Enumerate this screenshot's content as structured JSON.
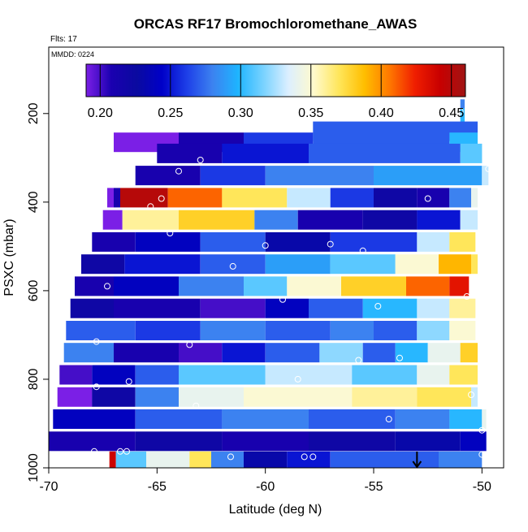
{
  "chart_data": {
    "type": "heatmap",
    "title": "ORCAS RF17 Bromochloromethane_AWAS",
    "flights_label": "Flts: 17",
    "date_label": "MMDD: 0224",
    "xlabel": "Latitude (deg N)",
    "ylabel": "PSXC (mbar)",
    "xlim": [
      -70,
      -49
    ],
    "ylim": [
      1000,
      50
    ],
    "x_ticks": [
      -70,
      -65,
      -60,
      -55,
      -50
    ],
    "x_tick_labels": [
      "-70",
      "-65",
      "-60",
      "-55",
      "-50"
    ],
    "y_ticks": [
      200,
      400,
      600,
      800,
      1000
    ],
    "y_tick_labels": [
      "200",
      "400",
      "600",
      "800",
      "1000"
    ],
    "colorbar": {
      "range": [
        0.19,
        0.46
      ],
      "ticks": [
        0.2,
        0.25,
        0.3,
        0.35,
        0.4,
        0.45
      ],
      "tick_labels": [
        "0.20",
        "0.25",
        "0.30",
        "0.35",
        "0.40",
        "0.45"
      ],
      "stops": [
        "#7b1fe6",
        "#1a00b0",
        "#0a0aa0",
        "#0000c8",
        "#1e40e8",
        "#3c82f0",
        "#1eb4ff",
        "#78d2ff",
        "#dcefff",
        "#fffacd",
        "#ffe65a",
        "#ffbe00",
        "#ff7800",
        "#f01e00",
        "#c80000",
        "#a01414"
      ]
    },
    "rows": [
      {
        "p": 190,
        "segments": [
          [
            -51.0,
            -50.8,
            0.28
          ]
        ]
      },
      {
        "p": 210,
        "segments": [
          [
            -51.0,
            -50.8,
            0.3
          ]
        ]
      },
      {
        "p": 240,
        "segments": [
          [
            -57.8,
            -50.2,
            0.27
          ]
        ]
      },
      {
        "p": 265,
        "segments": [
          [
            -67.0,
            -64.0,
            0.19
          ],
          [
            -64.0,
            -61.0,
            0.21
          ],
          [
            -61.0,
            -57.8,
            0.26
          ],
          [
            -57.8,
            -51.5,
            0.27
          ],
          [
            -51.5,
            -50.2,
            0.3
          ]
        ]
      },
      {
        "p": 290,
        "segments": [
          [
            -65.0,
            -62.0,
            0.21
          ],
          [
            -62.0,
            -58.0,
            0.25
          ],
          [
            -58.0,
            -51.0,
            0.27
          ],
          [
            -51.0,
            -50.0,
            0.31
          ]
        ]
      },
      {
        "p": 340,
        "segments": [
          [
            -66.0,
            -63.0,
            0.21
          ],
          [
            -63.0,
            -60.0,
            0.26
          ],
          [
            -60.0,
            -55.0,
            0.28
          ],
          [
            -55.0,
            -50.0,
            0.29
          ],
          [
            -50.0,
            -49.7,
            0.33
          ]
        ]
      },
      {
        "p": 390,
        "segments": [
          [
            -67.3,
            -67.0,
            0.19
          ],
          [
            -67.0,
            -66.7,
            0.21
          ],
          [
            -66.7,
            -64.5,
            0.45
          ],
          [
            -64.5,
            -62.0,
            0.41
          ],
          [
            -62.0,
            -59.0,
            0.37
          ],
          [
            -59.0,
            -57.0,
            0.33
          ],
          [
            -57.0,
            -55.0,
            0.26
          ],
          [
            -55.0,
            -53.0,
            0.22
          ],
          [
            -53.0,
            -51.5,
            0.21
          ],
          [
            -51.5,
            -50.5,
            0.28
          ],
          [
            -50.5,
            -50.2,
            0.34
          ]
        ]
      },
      {
        "p": 440,
        "segments": [
          [
            -67.5,
            -66.6,
            0.19
          ],
          [
            -66.6,
            -64.0,
            0.36
          ],
          [
            -64.0,
            -60.5,
            0.38
          ],
          [
            -60.5,
            -58.5,
            0.28
          ],
          [
            -58.5,
            -55.5,
            0.21
          ],
          [
            -55.5,
            -53.0,
            0.22
          ],
          [
            -53.0,
            -51.0,
            0.25
          ],
          [
            -51.0,
            -50.2,
            0.33
          ]
        ]
      },
      {
        "p": 490,
        "segments": [
          [
            -68.0,
            -66.0,
            0.21
          ],
          [
            -66.0,
            -63.0,
            0.24
          ],
          [
            -63.0,
            -60.0,
            0.27
          ],
          [
            -60.0,
            -57.0,
            0.23
          ],
          [
            -57.0,
            -53.0,
            0.26
          ],
          [
            -53.0,
            -51.5,
            0.33
          ],
          [
            -51.5,
            -50.3,
            0.37
          ]
        ]
      },
      {
        "p": 540,
        "segments": [
          [
            -68.5,
            -66.5,
            0.22
          ],
          [
            -66.5,
            -63.0,
            0.25
          ],
          [
            -63.0,
            -60.0,
            0.27
          ],
          [
            -60.0,
            -57.0,
            0.29
          ],
          [
            -57.0,
            -54.0,
            0.31
          ],
          [
            -54.0,
            -52.0,
            0.35
          ],
          [
            -52.0,
            -50.5,
            0.39
          ],
          [
            -50.5,
            -50.2,
            0.37
          ]
        ]
      },
      {
        "p": 590,
        "segments": [
          [
            -68.8,
            -67.0,
            0.21
          ],
          [
            -67.0,
            -64.0,
            0.24
          ],
          [
            -64.0,
            -61.0,
            0.28
          ],
          [
            -61.0,
            -59.0,
            0.31
          ],
          [
            -59.0,
            -56.5,
            0.35
          ],
          [
            -56.5,
            -53.5,
            0.38
          ],
          [
            -53.5,
            -51.5,
            0.41
          ],
          [
            -51.5,
            -50.6,
            0.43
          ]
        ]
      },
      {
        "p": 640,
        "segments": [
          [
            -69.0,
            -67.0,
            0.22
          ],
          [
            -67.0,
            -63.0,
            0.21
          ],
          [
            -63.0,
            -60.0,
            0.2
          ],
          [
            -60.0,
            -58.0,
            0.24
          ],
          [
            -58.0,
            -55.5,
            0.27
          ],
          [
            -55.5,
            -53.0,
            0.3
          ],
          [
            -53.0,
            -51.5,
            0.33
          ],
          [
            -51.5,
            -50.3,
            0.36
          ]
        ]
      },
      {
        "p": 690,
        "segments": [
          [
            -69.2,
            -66.0,
            0.27
          ],
          [
            -66.0,
            -63.0,
            0.26
          ],
          [
            -63.0,
            -60.0,
            0.28
          ],
          [
            -60.0,
            -57.0,
            0.27
          ],
          [
            -57.0,
            -55.0,
            0.28
          ],
          [
            -55.0,
            -53.0,
            0.27
          ],
          [
            -53.0,
            -51.5,
            0.32
          ],
          [
            -51.5,
            -50.3,
            0.35
          ]
        ]
      },
      {
        "p": 740,
        "segments": [
          [
            -69.3,
            -67.0,
            0.28
          ],
          [
            -67.0,
            -64.0,
            0.21
          ],
          [
            -64.0,
            -62.0,
            0.2
          ],
          [
            -62.0,
            -60.0,
            0.25
          ],
          [
            -60.0,
            -57.5,
            0.27
          ],
          [
            -57.5,
            -55.5,
            0.32
          ],
          [
            -55.5,
            -54.0,
            0.27
          ],
          [
            -54.0,
            -52.5,
            0.3
          ],
          [
            -52.5,
            -51.0,
            0.34
          ],
          [
            -51.0,
            -50.2,
            0.38
          ]
        ]
      },
      {
        "p": 790,
        "segments": [
          [
            -69.5,
            -68.0,
            0.2
          ],
          [
            -68.0,
            -66.0,
            0.24
          ],
          [
            -66.0,
            -64.0,
            0.27
          ],
          [
            -64.0,
            -60.0,
            0.31
          ],
          [
            -60.0,
            -56.0,
            0.33
          ],
          [
            -56.0,
            -53.0,
            0.31
          ],
          [
            -53.0,
            -51.5,
            0.34
          ],
          [
            -51.5,
            -50.2,
            0.37
          ]
        ]
      },
      {
        "p": 840,
        "segments": [
          [
            -69.6,
            -68.0,
            0.19
          ],
          [
            -68.0,
            -66.0,
            0.22
          ],
          [
            -66.0,
            -64.0,
            0.28
          ],
          [
            -64.0,
            -61.0,
            0.34
          ],
          [
            -61.0,
            -56.0,
            0.35
          ],
          [
            -56.0,
            -53.0,
            0.36
          ],
          [
            -53.0,
            -50.5,
            0.37
          ],
          [
            -50.5,
            -50.2,
            0.33
          ]
        ]
      },
      {
        "p": 890,
        "segments": [
          [
            -69.8,
            -66.0,
            0.24
          ],
          [
            -66.0,
            -62.0,
            0.27
          ],
          [
            -62.0,
            -58.0,
            0.28
          ],
          [
            -58.0,
            -54.0,
            0.27
          ],
          [
            -54.0,
            -51.5,
            0.28
          ],
          [
            -51.5,
            -50.0,
            0.3
          ],
          [
            -50.0,
            -49.8,
            0.34
          ]
        ]
      },
      {
        "p": 940,
        "segments": [
          [
            -70.0,
            -66.0,
            0.21
          ],
          [
            -66.0,
            -62.0,
            0.22
          ],
          [
            -62.0,
            -58.0,
            0.21
          ],
          [
            -58.0,
            -54.0,
            0.22
          ],
          [
            -54.0,
            -51.0,
            0.23
          ],
          [
            -51.0,
            -49.8,
            0.24
          ]
        ]
      },
      {
        "p": 985,
        "segments": [
          [
            -67.2,
            -66.9,
            0.44
          ],
          [
            -66.9,
            -65.5,
            0.31
          ],
          [
            -65.5,
            -63.5,
            0.34
          ],
          [
            -63.5,
            -62.5,
            0.37
          ],
          [
            -62.5,
            -61.0,
            0.28
          ],
          [
            -61.0,
            -59.0,
            0.23
          ],
          [
            -59.0,
            -57.0,
            0.25
          ],
          [
            -57.0,
            -52.0,
            0.27
          ],
          [
            -52.0,
            -50.0,
            0.28
          ]
        ]
      }
    ],
    "sample_points": [
      [
        -51.0,
        195
      ],
      [
        -49.7,
        325
      ],
      [
        -63.0,
        305
      ],
      [
        -64.0,
        330
      ],
      [
        -52.5,
        392
      ],
      [
        -64.8,
        392
      ],
      [
        -65.3,
        410
      ],
      [
        -64.4,
        470
      ],
      [
        -60.0,
        498
      ],
      [
        -57.0,
        495
      ],
      [
        -55.5,
        510
      ],
      [
        -61.5,
        545
      ],
      [
        -67.3,
        590
      ],
      [
        -59.2,
        620
      ],
      [
        -54.8,
        635
      ],
      [
        -50.7,
        613
      ],
      [
        -67.8,
        715
      ],
      [
        -63.5,
        722
      ],
      [
        -53.8,
        752
      ],
      [
        -55.7,
        757
      ],
      [
        -67.8,
        817
      ],
      [
        -66.3,
        805
      ],
      [
        -58.5,
        800
      ],
      [
        -50.5,
        835
      ],
      [
        -63.2,
        860
      ],
      [
        -54.3,
        890
      ],
      [
        -50.0,
        915
      ],
      [
        -67.9,
        963
      ],
      [
        -66.7,
        963
      ],
      [
        -66.4,
        963
      ],
      [
        -61.6,
        975
      ],
      [
        -57.8,
        975
      ],
      [
        -58.2,
        975
      ],
      [
        -50.0,
        970
      ]
    ],
    "arrow_marker_lat": -53.0
  }
}
